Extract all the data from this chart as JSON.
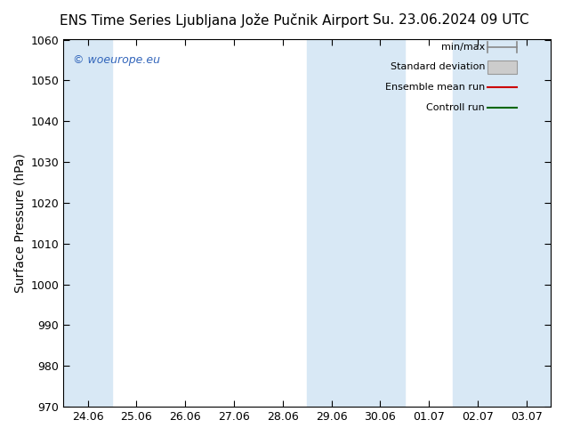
{
  "title_left": "ENS Time Series Ljubljana Jože Pučnik Airport",
  "title_right": "Su. 23.06.2024 09 UTC",
  "ylabel": "Surface Pressure (hPa)",
  "ylim": [
    970,
    1060
  ],
  "yticks": [
    970,
    980,
    990,
    1000,
    1010,
    1020,
    1030,
    1040,
    1050,
    1060
  ],
  "xtick_labels": [
    "24.06",
    "25.06",
    "26.06",
    "27.06",
    "28.06",
    "29.06",
    "30.06",
    "01.07",
    "02.07",
    "03.07"
  ],
  "background_color": "#ffffff",
  "plot_bg_color": "#ffffff",
  "shaded_band_color": "#d8e8f5",
  "shaded_columns": [
    0,
    5,
    6,
    8,
    9
  ],
  "legend_labels": [
    "min/max",
    "Standard deviation",
    "Ensemble mean run",
    "Controll run"
  ],
  "watermark": "© woeurope.eu",
  "watermark_color": "#3366bb",
  "title_fontsize": 11,
  "tick_fontsize": 9,
  "ylabel_fontsize": 10
}
